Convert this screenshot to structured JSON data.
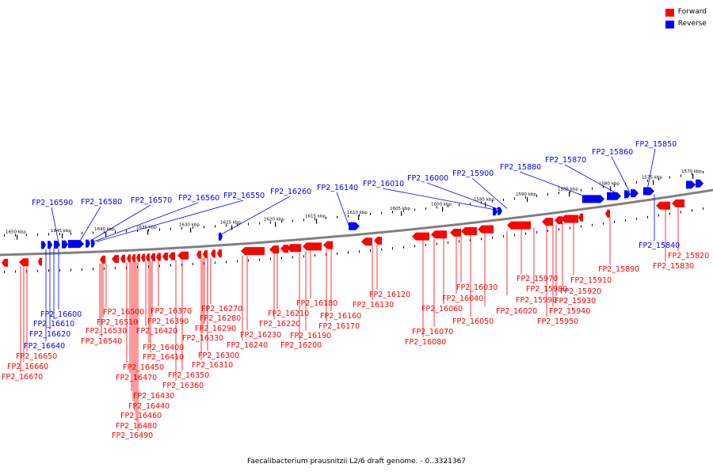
{
  "colors": {
    "forward": "#ff0000",
    "reverse": "#0000ff",
    "backbone": "#808080"
  },
  "legend": [
    {
      "label": "Forward",
      "color": "#ff0000"
    },
    {
      "label": "Reverse",
      "color": "#0000ff"
    }
  ],
  "caption": "Faecalibacterium prausnitzii L2/6 draft genome. - 0..3321367",
  "ticks": [
    "1650 kbp",
    "1645 kbp",
    "1640 kbp",
    "1635 kbp",
    "1630 kbp",
    "1625 kbp",
    "1620 kbp",
    "1615 kbp",
    "1610 kbp",
    "1605 kbp",
    "1600 kbp",
    "1595 kbp",
    "1590 kbp",
    "1585 kbp",
    "1580 kbp",
    "1575 kbp",
    "1570 kbp"
  ],
  "reverse_top": [
    "FP2_16590",
    "FP2_16580",
    "FP2_16570",
    "FP2_16560",
    "FP2_16550",
    "FP2_16260",
    "FP2_16140",
    "FP2_16010",
    "FP2_16000",
    "FP2_15900",
    "FP2_15880",
    "FP2_15870",
    "FP2_15860",
    "FP2_15850"
  ],
  "reverse_bottom": [
    "FP2_16600",
    "FP2_16610",
    "FP2_16620",
    "FP2_16640",
    "FP2_15840"
  ],
  "forward_bottom": [
    "FP2_16650",
    "FP2_16660",
    "FP2_16670",
    "FP2_16500",
    "FP2_16510",
    "FP2_16530",
    "FP2_16540",
    "FP2_16450",
    "FP2_16470",
    "FP2_16430",
    "FP2_16440",
    "FP2_16460",
    "FP2_16480",
    "FP2_16490",
    "FP2_16370",
    "FP2_16390",
    "FP2_16420",
    "FP2_16400",
    "FP2_16410",
    "FP2_16350",
    "FP2_16360",
    "FP2_16270",
    "FP2_16280",
    "FP2_16290",
    "FP2_16330",
    "FP2_16300",
    "FP2_16310",
    "FP2_16230",
    "FP2_16240",
    "FP2_16210",
    "FP2_16220",
    "FP2_16180",
    "FP2_16190",
    "FP2_16200",
    "FP2_16160",
    "FP2_16170",
    "FP2_16120",
    "FP2_16130",
    "FP2_16030",
    "FP2_16040",
    "FP2_16060",
    "FP2_16050",
    "FP2_16070",
    "FP2_16080",
    "FP2_16020",
    "FP2_15970",
    "FP2_15980",
    "FP2_15990",
    "FP2_15910",
    "FP2_15920",
    "FP2_15930",
    "FP2_15940",
    "FP2_15950",
    "FP2_15890",
    "FP2_15820",
    "FP2_15830"
  ]
}
